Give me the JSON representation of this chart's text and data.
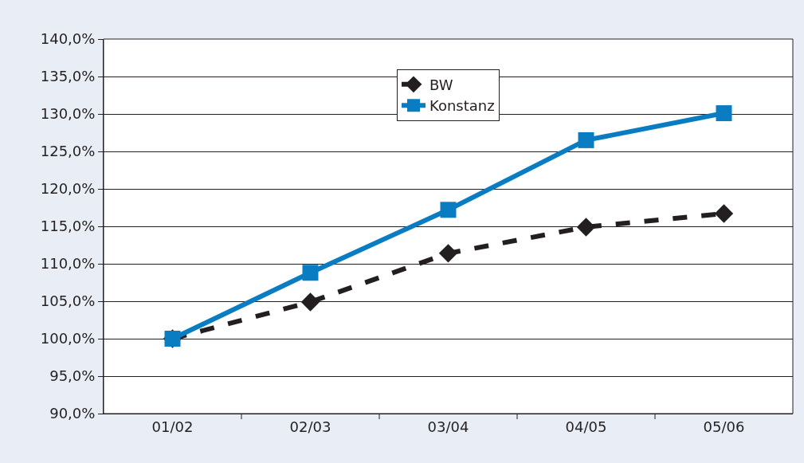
{
  "chart_data": {
    "type": "line",
    "categories": [
      "01/02",
      "02/03",
      "03/04",
      "04/05",
      "05/06"
    ],
    "series": [
      {
        "name": "BW",
        "color": "#231f20",
        "marker": "diamond",
        "line_style": "dashed",
        "values": [
          100.0,
          104.9,
          111.4,
          114.9,
          116.7
        ]
      },
      {
        "name": "Konstanz",
        "color": "#0a7dc2",
        "marker": "square",
        "line_style": "solid",
        "values": [
          100.0,
          108.8,
          117.2,
          126.5,
          130.1
        ]
      }
    ],
    "ylim": [
      90,
      140
    ],
    "yticks": [
      {
        "value": 90,
        "label": "90,0%"
      },
      {
        "value": 95,
        "label": "95,0%"
      },
      {
        "value": 100,
        "label": "100,0%"
      },
      {
        "value": 105,
        "label": "105,0%"
      },
      {
        "value": 110,
        "label": "110,0%"
      },
      {
        "value": 115,
        "label": "115,0%"
      },
      {
        "value": 120,
        "label": "120,0%"
      },
      {
        "value": 125,
        "label": "125,0%"
      },
      {
        "value": 130,
        "label": "130,0%"
      },
      {
        "value": 135,
        "label": "135,0%"
      },
      {
        "value": 140,
        "label": "140,0%"
      }
    ],
    "grid": "y",
    "legend": "top"
  }
}
